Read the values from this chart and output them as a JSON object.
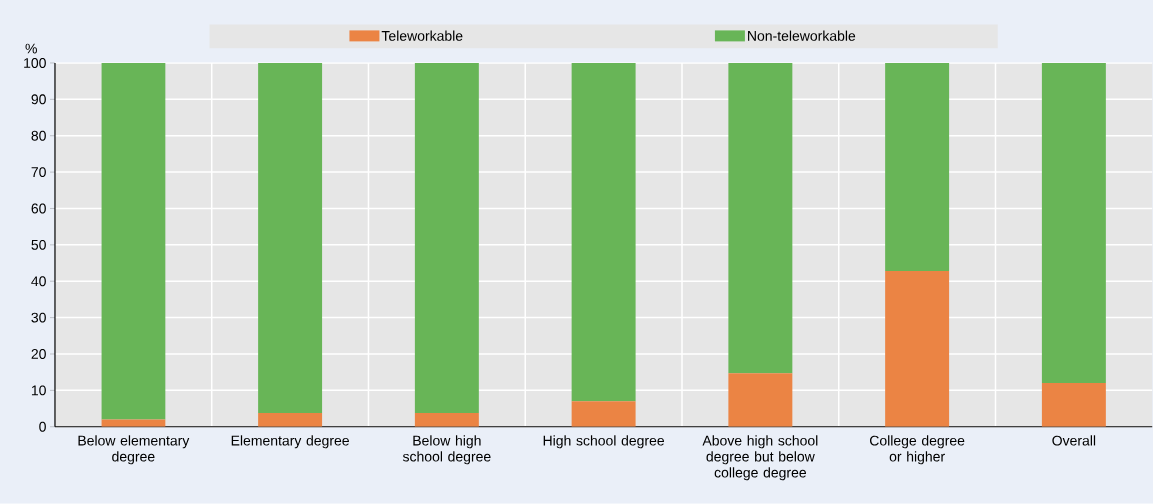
{
  "chart_data": {
    "type": "bar",
    "stacked": true,
    "ylabel": "%",
    "categories": [
      "Below elementary degree",
      "Elementary degree",
      "Below high school degree",
      "High school degree",
      "Above high school degree but below college degree",
      "College degree or higher",
      "Overall"
    ],
    "series": [
      {
        "name": "Teleworkable",
        "color": "#eb8444",
        "values": [
          2,
          3.8,
          3.8,
          7,
          14.7,
          42.8,
          12
        ]
      },
      {
        "name": "Non-teleworkable",
        "color": "#68b557",
        "values": [
          98,
          96.2,
          96.2,
          93,
          85.3,
          57.2,
          88
        ]
      }
    ],
    "ylim": [
      0,
      100
    ],
    "yticks": [
      0,
      10,
      20,
      30,
      40,
      50,
      60,
      70,
      80,
      90,
      100
    ],
    "grid": true,
    "legend": "top"
  }
}
